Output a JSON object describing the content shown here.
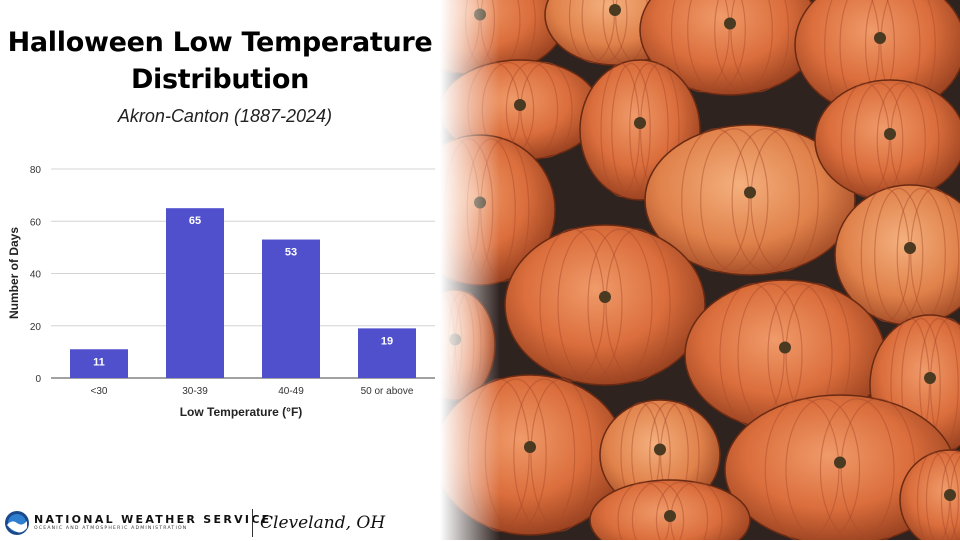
{
  "header": {
    "title_line1": "Halloween Low Temperature",
    "title_line2": "Distribution",
    "subtitle": "Akron-Canton (1887-2024)"
  },
  "chart_data": {
    "type": "bar",
    "categories": [
      "<30",
      "30-39",
      "40-49",
      "50 or above"
    ],
    "values": [
      11,
      65,
      53,
      19
    ],
    "data_labels": [
      "11",
      "65",
      "53",
      "19"
    ],
    "xlabel": "Low Temperature (°F)",
    "ylabel": "Number of Days",
    "ylim": [
      0,
      80
    ],
    "yticks": [
      0,
      20,
      40,
      60,
      80
    ],
    "grid": true,
    "bar_color": "#5050cc"
  },
  "footer": {
    "agency": "NATIONAL WEATHER SERVICE",
    "agency_sub": "OCEANIC AND ATMOSPHERIC ADMINISTRATION",
    "office": "Cleveland, OH"
  },
  "background_image": {
    "subject": "pile of orange pumpkins",
    "icon": "pumpkins-photo"
  }
}
